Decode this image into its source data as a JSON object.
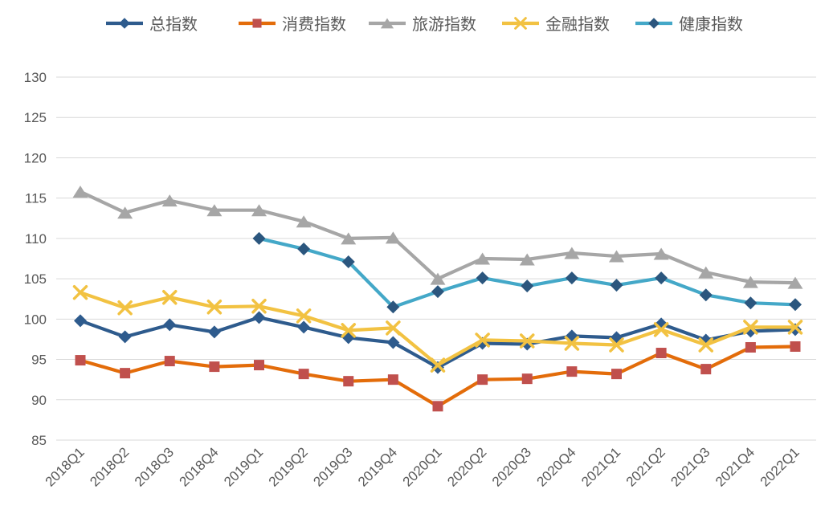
{
  "chart_data": {
    "type": "line",
    "title": "",
    "xlabel": "",
    "ylabel": "",
    "ylim": [
      85,
      130
    ],
    "yticks": [
      130,
      125,
      120,
      115,
      110,
      105,
      100,
      95,
      90,
      85
    ],
    "grid": true,
    "legend_position": "top",
    "axis_label_color": "#595959",
    "gridline_color": "#D9D9D9",
    "categories": [
      "2018Q1",
      "2018Q2",
      "2018Q3",
      "2018Q4",
      "2019Q1",
      "2019Q2",
      "2019Q3",
      "2019Q4",
      "2020Q1",
      "2020Q2",
      "2020Q3",
      "2020Q4",
      "2021Q1",
      "2021Q2",
      "2021Q3",
      "2021Q4",
      "2022Q1"
    ],
    "series": [
      {
        "id": "total-index",
        "name": "总指数",
        "color": "#2E5B8D",
        "marker": "diamond",
        "marker_color": "#2E5B8D",
        "values": [
          99.8,
          97.8,
          99.3,
          98.4,
          100.2,
          99.0,
          97.7,
          97.1,
          94.0,
          97.0,
          96.9,
          97.9,
          97.7,
          99.4,
          97.4,
          98.5,
          98.7
        ]
      },
      {
        "id": "consumption-index",
        "name": "消费指数",
        "color": "#E36C0A",
        "marker": "square",
        "marker_color": "#C0504D",
        "values": [
          94.9,
          93.3,
          94.8,
          94.1,
          94.3,
          93.2,
          92.3,
          92.5,
          89.2,
          92.5,
          92.6,
          93.5,
          93.2,
          95.8,
          93.8,
          96.5,
          96.6
        ]
      },
      {
        "id": "tourism-index",
        "name": "旅游指数",
        "color": "#A6A6A6",
        "marker": "triangle",
        "marker_color": "#A6A6A6",
        "values": [
          115.8,
          113.2,
          114.7,
          113.5,
          113.5,
          112.1,
          110.0,
          110.1,
          105.0,
          107.5,
          107.4,
          108.2,
          107.8,
          108.1,
          105.8,
          104.6,
          104.5
        ]
      },
      {
        "id": "finance-index",
        "name": "金融指数",
        "color": "#F2C242",
        "marker": "x",
        "marker_color": "#F2C242",
        "values": [
          103.3,
          101.4,
          102.7,
          101.5,
          101.6,
          100.4,
          98.6,
          98.9,
          94.3,
          97.4,
          97.3,
          97.0,
          96.8,
          98.7,
          96.8,
          99.0,
          99.0
        ]
      },
      {
        "id": "health-index",
        "name": "健康指数",
        "color": "#44A8C8",
        "marker": "diamond",
        "marker_color": "#2B567E",
        "values": [
          null,
          null,
          null,
          null,
          110.0,
          108.7,
          107.1,
          101.5,
          103.4,
          105.1,
          104.1,
          105.1,
          104.2,
          105.1,
          103.0,
          102.0,
          101.8
        ]
      }
    ]
  }
}
